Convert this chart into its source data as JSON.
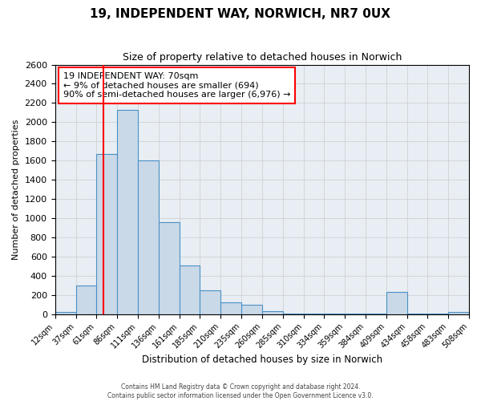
{
  "title": "19, INDEPENDENT WAY, NORWICH, NR7 0UX",
  "subtitle": "Size of property relative to detached houses in Norwich",
  "xlabel": "Distribution of detached houses by size in Norwich",
  "ylabel": "Number of detached properties",
  "bin_edges": [
    12,
    37,
    61,
    86,
    111,
    136,
    161,
    185,
    210,
    235,
    260,
    285,
    310,
    334,
    359,
    384,
    409,
    434,
    458,
    483,
    508
  ],
  "bin_labels": [
    "12sqm",
    "37sqm",
    "61sqm",
    "86sqm",
    "111sqm",
    "136sqm",
    "161sqm",
    "185sqm",
    "210sqm",
    "235sqm",
    "260sqm",
    "285sqm",
    "310sqm",
    "334sqm",
    "359sqm",
    "384sqm",
    "409sqm",
    "434sqm",
    "458sqm",
    "483sqm",
    "508sqm"
  ],
  "counts": [
    20,
    300,
    1670,
    2130,
    1600,
    960,
    510,
    250,
    120,
    100,
    30,
    5,
    5,
    5,
    5,
    5,
    230,
    5,
    5,
    20
  ],
  "bar_facecolor": "#c9d9e8",
  "bar_edgecolor": "#4a90c4",
  "grid_color": "#cccccc",
  "bg_color": "#e8eef4",
  "vline_x": 70,
  "vline_color": "red",
  "ylim": [
    0,
    2600
  ],
  "yticks": [
    0,
    200,
    400,
    600,
    800,
    1000,
    1200,
    1400,
    1600,
    1800,
    2000,
    2200,
    2400,
    2600
  ],
  "annotation_title": "19 INDEPENDENT WAY: 70sqm",
  "annotation_line1": "← 9% of detached houses are smaller (694)",
  "annotation_line2": "90% of semi-detached houses are larger (6,976) →",
  "annotation_box_color": "red",
  "footer1": "Contains HM Land Registry data © Crown copyright and database right 2024.",
  "footer2": "Contains public sector information licensed under the Open Government Licence v3.0."
}
